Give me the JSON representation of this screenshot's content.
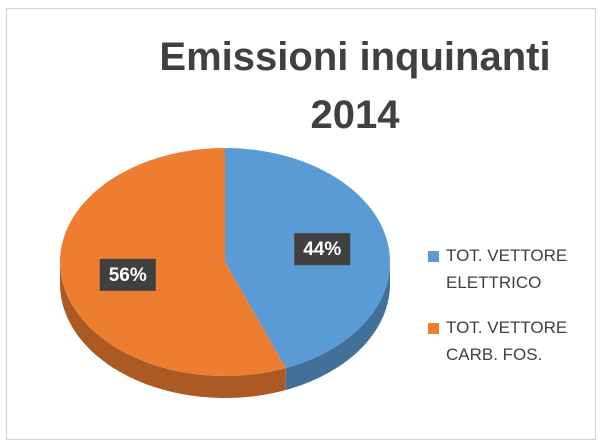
{
  "chart_data": {
    "type": "pie",
    "title": "Emissioni inquinanti 2014",
    "categories": [
      "TOT. VETTORE ELETTRICO",
      "TOT. VETTORE CARB. FOS."
    ],
    "values": [
      44,
      56
    ],
    "value_labels": [
      "44%",
      "56%"
    ],
    "colors": [
      "#5b9bd5",
      "#ed7d31"
    ],
    "legend": "right"
  }
}
